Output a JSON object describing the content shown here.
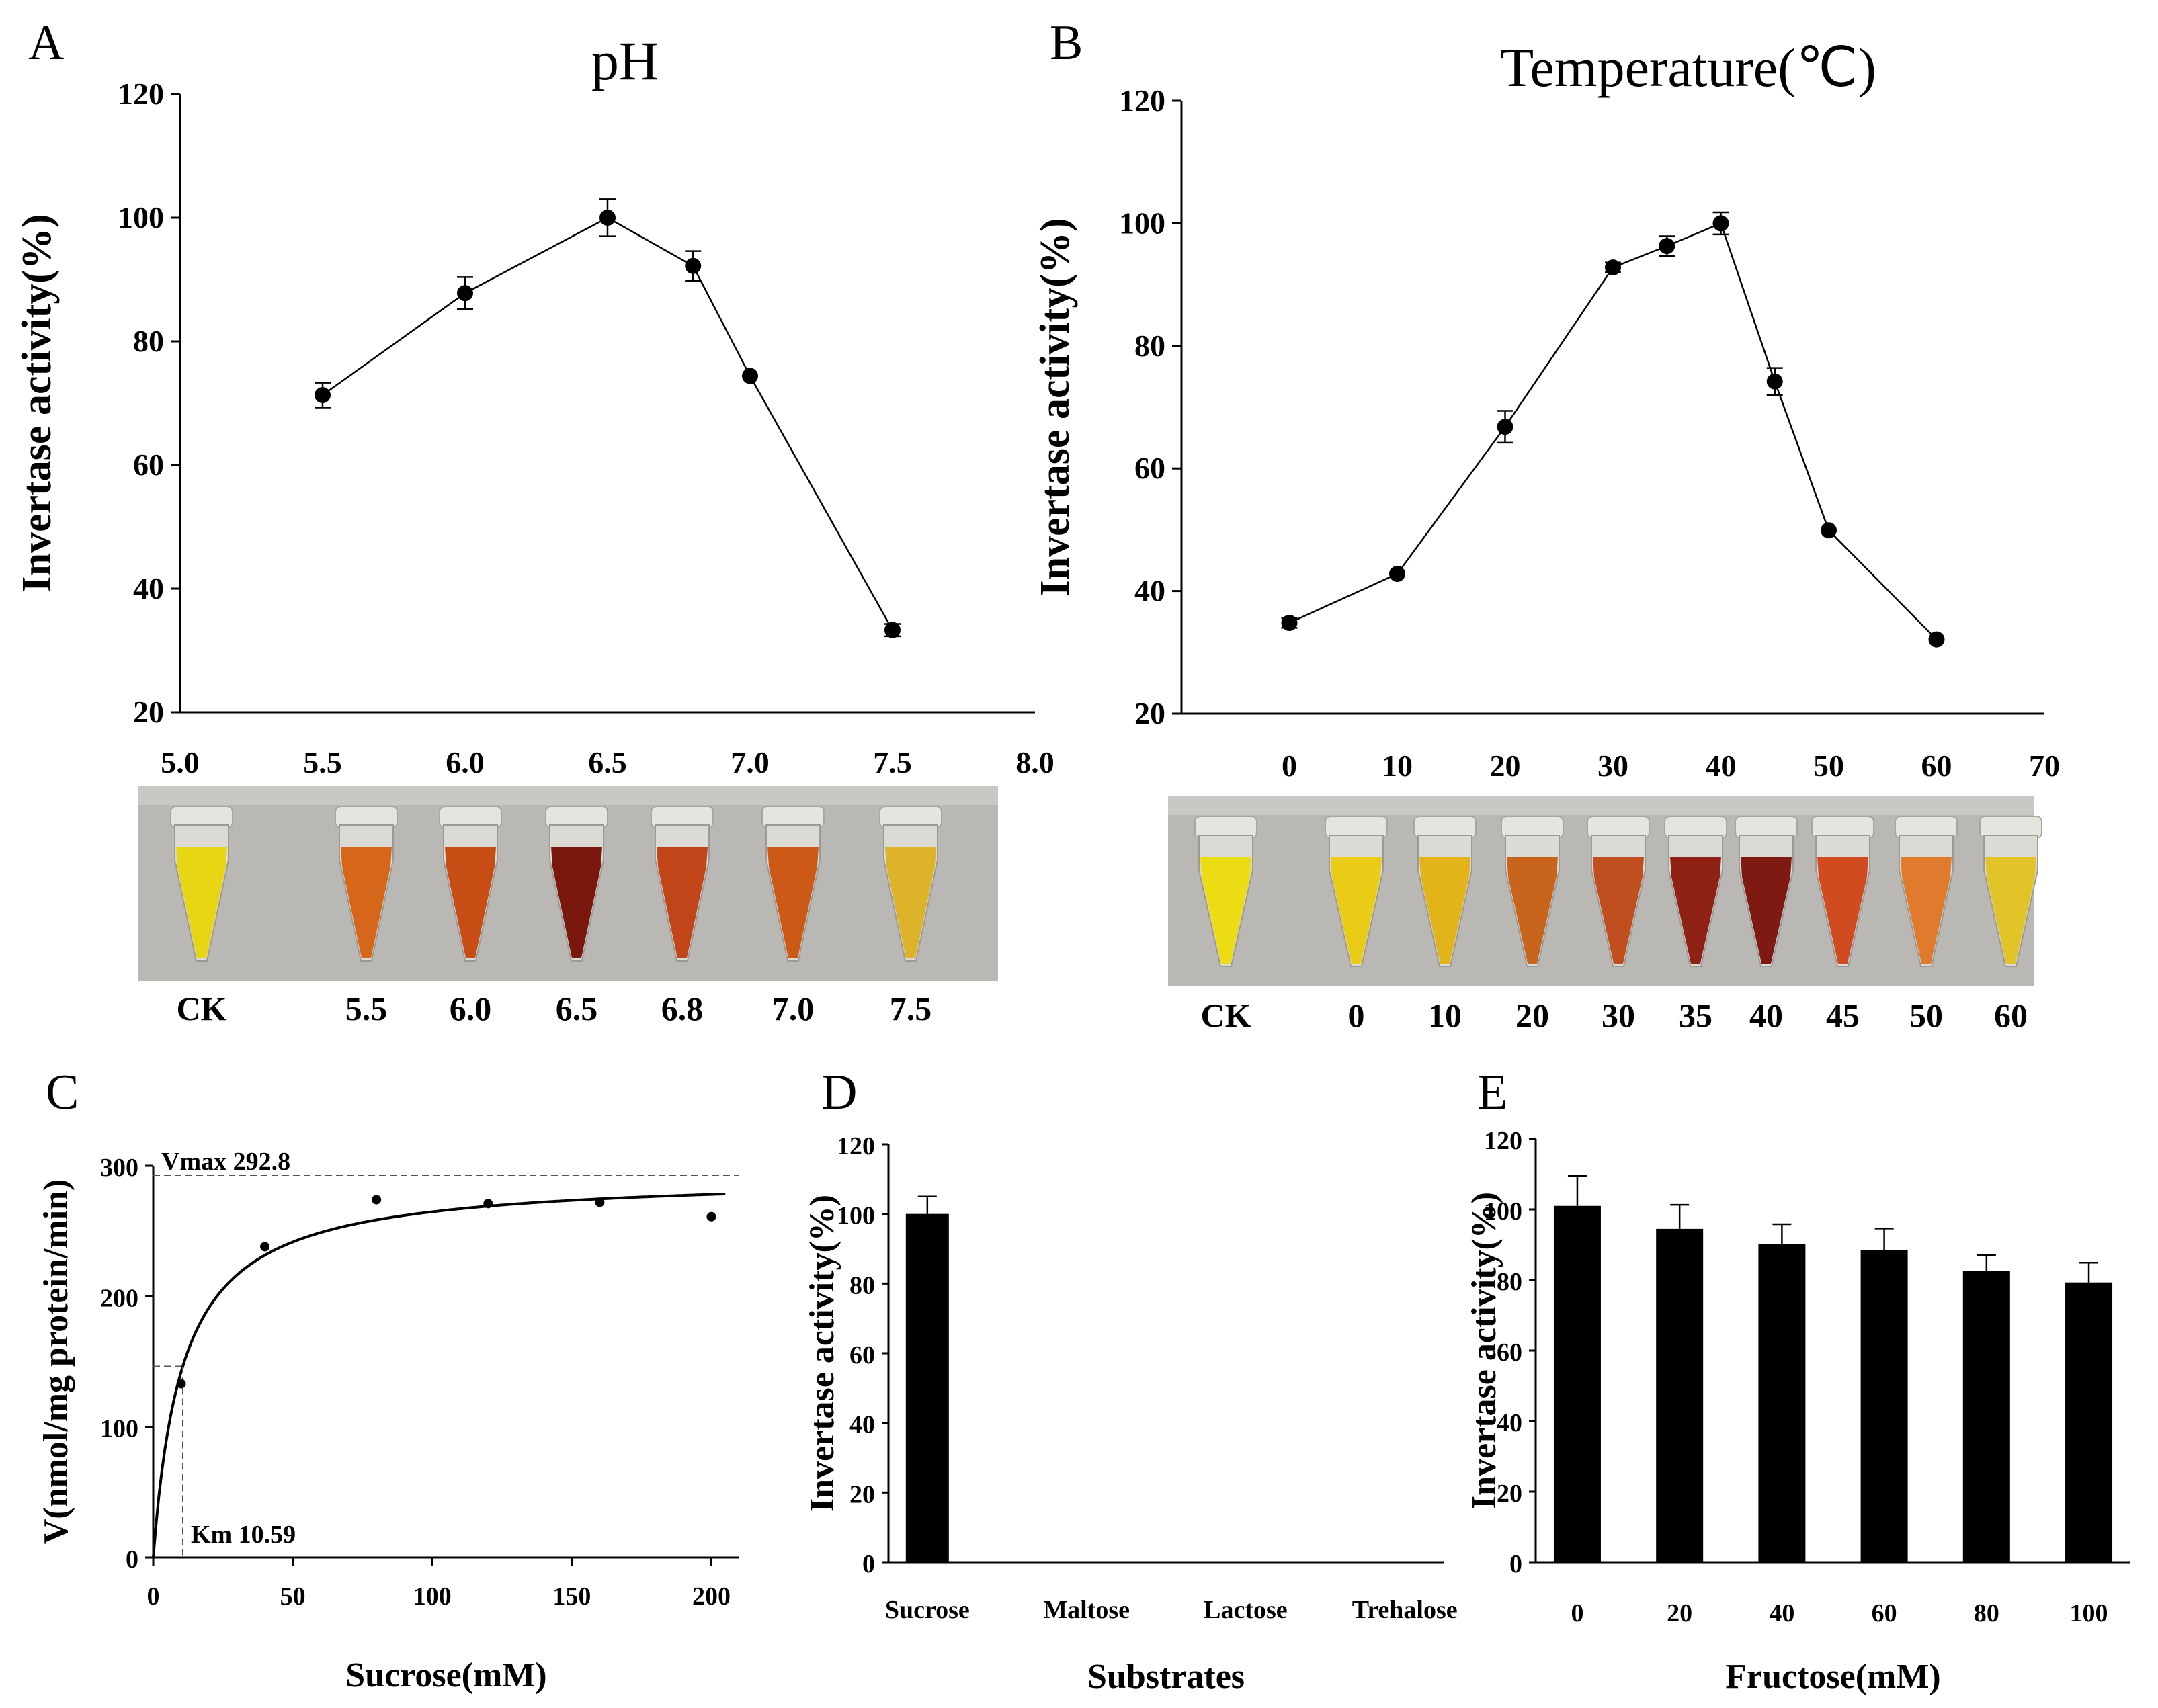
{
  "chart_data": [
    {
      "id": "A",
      "panel_label": "A",
      "type": "line",
      "title": "pH",
      "xlabel": "",
      "ylabel": "Invertase activity(%)",
      "xlim": [
        5.0,
        8.0
      ],
      "ylim": [
        20,
        120
      ],
      "xticks": [
        "5.0",
        "5.5",
        "6.0",
        "6.5",
        "7.0",
        "7.5",
        "8.0"
      ],
      "yticks": [
        "20",
        "40",
        "60",
        "80",
        "100",
        "120"
      ],
      "x": [
        5.5,
        6.0,
        6.5,
        6.8,
        7.0,
        7.5
      ],
      "values": [
        71.3,
        87.8,
        100,
        92.2,
        74.4,
        33.3
      ],
      "errors": [
        2,
        2.6,
        3,
        2.4,
        0.6,
        1
      ],
      "tube_photo": {
        "labels": [
          "CK",
          "5.5",
          "6.0",
          "6.5",
          "6.8",
          "7.0",
          "7.5"
        ],
        "colors": [
          "#e8d614",
          "#d5661a",
          "#c84d14",
          "#7a180e",
          "#c2451a",
          "#cc5a16",
          "#ddb32a"
        ]
      }
    },
    {
      "id": "B",
      "panel_label": "B",
      "type": "line",
      "title": "Temperature(℃)",
      "xlabel": "",
      "ylabel": "Invertase activity(%)",
      "xlim": [
        -10,
        70
      ],
      "ylim": [
        20,
        120
      ],
      "xticks": [
        "0",
        "10",
        "20",
        "30",
        "40",
        "50",
        "60",
        "70"
      ],
      "yticks": [
        "20",
        "40",
        "60",
        "80",
        "100",
        "120"
      ],
      "x": [
        0,
        10,
        20,
        30,
        35,
        40,
        45,
        50,
        60
      ],
      "values": [
        34.8,
        42.8,
        66.8,
        92.8,
        96.3,
        100,
        74.2,
        49.9,
        32.1
      ],
      "errors": [
        0.8,
        0.6,
        2.6,
        0.8,
        1.6,
        1.8,
        2.2,
        0.6,
        0.6
      ],
      "tube_photo": {
        "labels": [
          "CK",
          "0",
          "10",
          "20",
          "30",
          "35",
          "40",
          "45",
          "50",
          "60"
        ],
        "colors": [
          "#ecdc14",
          "#eacb16",
          "#e2b41a",
          "#c8641c",
          "#c04e1e",
          "#8f2214",
          "#7e1a12",
          "#d04c20",
          "#e07a2c",
          "#e2c428"
        ]
      }
    },
    {
      "id": "C",
      "panel_label": "C",
      "type": "scatter",
      "title": "",
      "xlabel": "Sucrose(mM)",
      "ylabel": "V(nmol/mg protein/min)",
      "xlim": [
        0,
        210
      ],
      "ylim": [
        0,
        300
      ],
      "xticks": [
        "0",
        "50",
        "100",
        "150",
        "200"
      ],
      "yticks": [
        "0",
        "100",
        "200",
        "300"
      ],
      "x": [
        10,
        40,
        80,
        120,
        160,
        200
      ],
      "values": [
        133,
        238,
        274,
        271,
        272,
        261
      ],
      "fit": {
        "model": "Michaelis-Menten",
        "vmax": 292.8,
        "km": 10.59
      },
      "annotations": {
        "vmax_label": "Vmax  292.8",
        "km_label": "Km 10.59"
      }
    },
    {
      "id": "D",
      "panel_label": "D",
      "type": "bar",
      "title": "",
      "xlabel": "Substrates",
      "ylabel": "Invertase activity(%)",
      "ylim": [
        0,
        120
      ],
      "yticks": [
        "0",
        "20",
        "40",
        "60",
        "80",
        "100",
        "120"
      ],
      "categories": [
        "Sucrose",
        "Maltose",
        "Lactose",
        "Trehalose"
      ],
      "values": [
        100,
        0,
        0,
        0
      ],
      "errors": [
        5,
        0,
        0,
        0
      ]
    },
    {
      "id": "E",
      "panel_label": "E",
      "type": "bar",
      "title": "",
      "xlabel": "Fructose(mM)",
      "ylabel": "Invertase activity(%)",
      "ylim": [
        0,
        120
      ],
      "yticks": [
        "0",
        "20",
        "40",
        "60",
        "80",
        "100",
        "120"
      ],
      "categories": [
        "0",
        "20",
        "40",
        "60",
        "80",
        "100"
      ],
      "values": [
        101,
        94.5,
        90.2,
        88.4,
        82.6,
        79.3
      ],
      "errors": [
        8.5,
        6.8,
        5.6,
        6.2,
        4.4,
        5.6
      ]
    }
  ]
}
